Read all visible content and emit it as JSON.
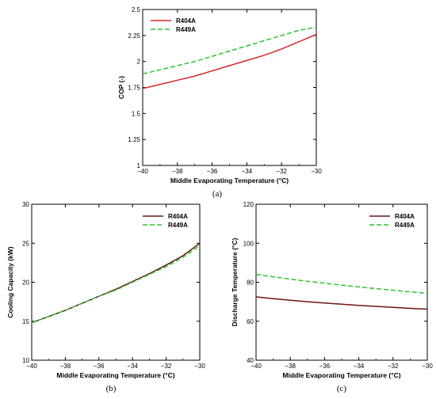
{
  "colors": {
    "R404A": "#d8282c",
    "R449A": "#2fc22f",
    "R404A_lower": "#6b1515"
  },
  "chart_data": [
    {
      "type": "line",
      "caption": "(a)",
      "xlabel": "Middle Evaporating Temperature (°C)",
      "ylabel": "COP (-)",
      "xlim": [
        -40,
        -30
      ],
      "ylim": [
        1,
        2.5
      ],
      "xticks": [
        -40,
        -38,
        -36,
        -34,
        -32,
        -30
      ],
      "yticks": [
        1,
        1.25,
        1.5,
        1.75,
        2,
        2.25,
        2.5
      ],
      "ytick_labels": [
        "1",
        "1.25",
        "1.5",
        "1.75",
        "2",
        "2.25",
        "2.5"
      ],
      "legend_position": "top-left",
      "series": [
        {
          "name": "R404A",
          "style": "solid",
          "x": [
            -40,
            -39,
            -38,
            -37,
            -36,
            -35,
            -34,
            -33,
            -32,
            -31,
            -30
          ],
          "y": [
            1.74,
            1.78,
            1.82,
            1.86,
            1.91,
            1.96,
            2.01,
            2.06,
            2.12,
            2.19,
            2.26
          ]
        },
        {
          "name": "R449A",
          "style": "dashed",
          "x": [
            -40,
            -39,
            -38,
            -37,
            -36,
            -35,
            -34,
            -33,
            -32,
            -31,
            -30
          ],
          "y": [
            1.88,
            1.92,
            1.96,
            2.0,
            2.05,
            2.1,
            2.15,
            2.2,
            2.25,
            2.3,
            2.33
          ]
        }
      ]
    },
    {
      "type": "line",
      "caption": "(b)",
      "xlabel": "Middle Evaporating Temperature (°C)",
      "ylabel": "Cooling Capacity (kW)",
      "xlim": [
        -40,
        -30
      ],
      "ylim": [
        10,
        30
      ],
      "xticks": [
        -40,
        -38,
        -36,
        -34,
        -32,
        -30
      ],
      "yticks": [
        10,
        15,
        20,
        25,
        30
      ],
      "ytick_labels": [
        "10",
        "15",
        "20",
        "25",
        "30"
      ],
      "legend_position": "top-right",
      "series": [
        {
          "name": "R404A",
          "style": "solid",
          "x": [
            -40,
            -39,
            -38,
            -37,
            -36,
            -35,
            -34,
            -33,
            -32,
            -31,
            -30
          ],
          "y": [
            14.8,
            15.6,
            16.4,
            17.3,
            18.2,
            19.1,
            20.1,
            21.1,
            22.2,
            23.4,
            25.0
          ]
        },
        {
          "name": "R449A",
          "style": "dashed",
          "x": [
            -40,
            -39,
            -38,
            -37,
            -36,
            -35,
            -34,
            -33,
            -32,
            -31,
            -30
          ],
          "y": [
            14.8,
            15.6,
            16.4,
            17.3,
            18.2,
            19.0,
            20.0,
            21.0,
            22.0,
            23.2,
            24.7
          ]
        }
      ]
    },
    {
      "type": "line",
      "caption": "(c)",
      "xlabel": "Middle Evaporating Temperature (°C)",
      "ylabel": "Discharge Temperature (°C)",
      "xlim": [
        -40,
        -30
      ],
      "ylim": [
        40,
        120
      ],
      "xticks": [
        -40,
        -38,
        -36,
        -34,
        -32,
        -30
      ],
      "yticks": [
        40,
        60,
        80,
        100,
        120
      ],
      "ytick_labels": [
        "40",
        "60",
        "80",
        "100",
        "120"
      ],
      "legend_position": "top-right",
      "series": [
        {
          "name": "R404A",
          "style": "solid",
          "x": [
            -40,
            -39,
            -38,
            -37,
            -36,
            -35,
            -34,
            -33,
            -32,
            -31,
            -30
          ],
          "y": [
            72.5,
            71.6,
            70.8,
            70.0,
            69.3,
            68.7,
            68.1,
            67.6,
            67.1,
            66.6,
            66.2
          ]
        },
        {
          "name": "R449A",
          "style": "dashed",
          "x": [
            -40,
            -39,
            -38,
            -37,
            -36,
            -35,
            -34,
            -33,
            -32,
            -31,
            -30
          ],
          "y": [
            84.0,
            82.8,
            81.6,
            80.5,
            79.5,
            78.5,
            77.6,
            76.7,
            75.9,
            75.1,
            74.3
          ]
        }
      ]
    }
  ]
}
